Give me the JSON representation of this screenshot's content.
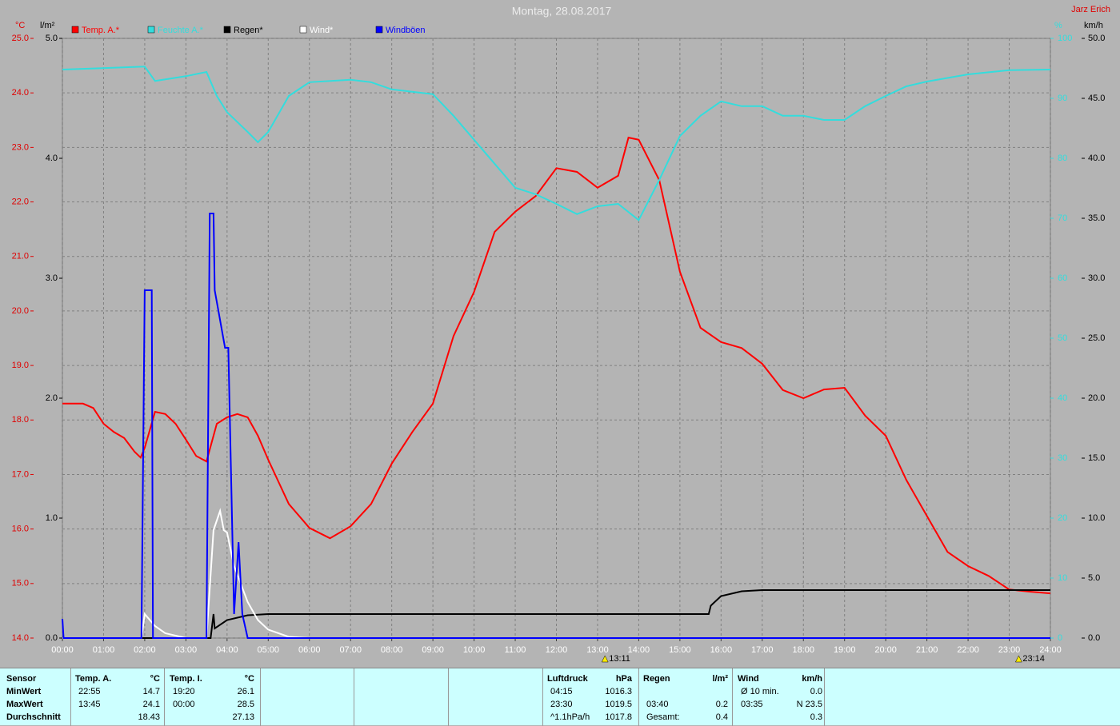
{
  "chart_data": {
    "type": "line",
    "title": "Montag, 28.08.2017",
    "subtitle": "Jarz Erich",
    "ylabel": "°C",
    "y2label": "l/m²",
    "y3label": "%",
    "y4label": "km/h",
    "xlim": [
      0,
      24
    ],
    "xticks": [
      {
        "value": 0,
        "label": "00:00"
      },
      {
        "value": 1,
        "label": "01:00"
      },
      {
        "value": 2,
        "label": "02:00"
      },
      {
        "value": 3,
        "label": "03:00"
      },
      {
        "value": 4,
        "label": "04:00"
      },
      {
        "value": 5,
        "label": "05:00"
      },
      {
        "value": 6,
        "label": "06:00"
      },
      {
        "value": 7,
        "label": "07:00"
      },
      {
        "value": 8,
        "label": "08:00"
      },
      {
        "value": 9,
        "label": "09:00"
      },
      {
        "value": 10,
        "label": "10:00"
      },
      {
        "value": 11,
        "label": "11:00"
      },
      {
        "value": 12,
        "label": "12:00"
      },
      {
        "value": 13,
        "label": "13:00"
      },
      {
        "value": 14,
        "label": "14:00"
      },
      {
        "value": 15,
        "label": "15:00"
      },
      {
        "value": 16,
        "label": "16:00"
      },
      {
        "value": 17,
        "label": "17:00"
      },
      {
        "value": 18,
        "label": "18:00"
      },
      {
        "value": 19,
        "label": "19:00"
      },
      {
        "value": 20,
        "label": "20:00"
      },
      {
        "value": 21,
        "label": "21:00"
      },
      {
        "value": 22,
        "label": "22:00"
      },
      {
        "value": 23,
        "label": "23:00"
      },
      {
        "value": 24,
        "label": "24:00"
      }
    ],
    "ylim": [
      14,
      25
    ],
    "yticks": [
      {
        "value": 14,
        "label": "14.0"
      },
      {
        "value": 15,
        "label": "15.0"
      },
      {
        "value": 16,
        "label": "16.0"
      },
      {
        "value": 17,
        "label": "17.0"
      },
      {
        "value": 18,
        "label": "18.0"
      },
      {
        "value": 19,
        "label": "19.0"
      },
      {
        "value": 20,
        "label": "20.0"
      },
      {
        "value": 21,
        "label": "21.0"
      },
      {
        "value": 22,
        "label": "22.0"
      },
      {
        "value": 23,
        "label": "23.0"
      },
      {
        "value": 24,
        "label": "24.0"
      },
      {
        "value": 25,
        "label": "25.0"
      }
    ],
    "y2lim": [
      0,
      5
    ],
    "y2ticks": [
      {
        "value": 0,
        "label": "0.0"
      },
      {
        "value": 1,
        "label": "1.0"
      },
      {
        "value": 2,
        "label": "2.0"
      },
      {
        "value": 3,
        "label": "3.0"
      },
      {
        "value": 4,
        "label": "4.0"
      },
      {
        "value": 5,
        "label": "5.0"
      }
    ],
    "y3lim": [
      0,
      100
    ],
    "y3ticks": [
      0,
      10,
      20,
      30,
      40,
      50,
      60,
      70,
      80,
      90,
      100
    ],
    "y4lim": [
      0,
      50
    ],
    "y4ticks": [
      {
        "value": 0,
        "label": "0.0"
      },
      {
        "value": 5,
        "label": "5.0"
      },
      {
        "value": 10,
        "label": "10.0"
      },
      {
        "value": 15,
        "label": "15.0"
      },
      {
        "value": 20,
        "label": "20.0"
      },
      {
        "value": 25,
        "label": "25.0"
      },
      {
        "value": 30,
        "label": "30.0"
      },
      {
        "value": 35,
        "label": "35.0"
      },
      {
        "value": 40,
        "label": "40.0"
      },
      {
        "value": 45,
        "label": "45.0"
      },
      {
        "value": 50,
        "label": "50.0"
      }
    ],
    "grid": true,
    "series": [
      {
        "name": "Temp. A.*",
        "color": "#ff0000",
        "x": [
          0,
          0.5,
          0.75,
          1,
          1.25,
          1.5,
          1.75,
          1.9,
          2,
          2.25,
          2.5,
          2.75,
          3,
          3.25,
          3.5,
          3.75,
          4,
          4.25,
          4.5,
          4.75,
          5,
          5.5,
          6,
          6.5,
          7,
          7.5,
          8,
          8.5,
          9,
          9.5,
          10,
          10.5,
          11,
          11.5,
          12,
          12.5,
          13,
          13.5,
          13.75,
          14,
          14.5,
          15,
          15.5,
          16,
          16.5,
          17,
          17.5,
          18,
          18.5,
          19,
          19.5,
          20,
          20.5,
          21,
          21.5,
          22,
          22.5,
          23,
          23.5,
          24
        ],
        "values": [
          18.3,
          18.3,
          18.22,
          17.93,
          17.78,
          17.67,
          17.42,
          17.31,
          17.49,
          18.15,
          18.11,
          17.93,
          17.64,
          17.34,
          17.24,
          17.93,
          18.05,
          18.11,
          18.05,
          17.71,
          17.27,
          16.46,
          16.02,
          15.83,
          16.05,
          16.46,
          17.2,
          17.78,
          18.3,
          19.54,
          20.35,
          21.45,
          21.82,
          22.11,
          22.62,
          22.55,
          22.26,
          22.48,
          23.18,
          23.14,
          22.4,
          20.72,
          19.69,
          19.43,
          19.32,
          19.03,
          18.55,
          18.4,
          18.56,
          18.59,
          18.08,
          17.71,
          16.9,
          16.24,
          15.58,
          15.32,
          15.14,
          14.89,
          14.85,
          14.82
        ]
      },
      {
        "name": "Feuchte A.*",
        "color": "#33dddd",
        "axis": "y3",
        "x": [
          0,
          2,
          2.25,
          3,
          3.5,
          3.75,
          4,
          4.5,
          4.75,
          5,
          5.5,
          6,
          7,
          7.5,
          8,
          9,
          9.5,
          10,
          10.5,
          11,
          11.5,
          12,
          12.5,
          13,
          13.5,
          14,
          14.5,
          15,
          15.5,
          16,
          16.5,
          17,
          17.5,
          18,
          18.5,
          19,
          19.5,
          20,
          20.5,
          21,
          22,
          23,
          24
        ],
        "values": [
          94.8,
          95.3,
          92.9,
          93.7,
          94.4,
          90.4,
          87.7,
          84.4,
          82.7,
          84.4,
          90.4,
          92.7,
          93.1,
          92.7,
          91.5,
          90.7,
          87.1,
          83.1,
          79.1,
          75.1,
          74.0,
          72.4,
          70.7,
          72.0,
          72.4,
          69.7,
          76.4,
          83.7,
          87.1,
          89.5,
          88.7,
          88.7,
          87.1,
          87.1,
          86.4,
          86.4,
          88.7,
          90.4,
          92.0,
          92.8,
          94.0,
          94.7,
          94.8
        ]
      },
      {
        "name": "Regen*",
        "color": "#000000",
        "axis": "y2",
        "x": [
          0,
          3.6,
          3.67,
          3.7,
          4,
          4.5,
          5,
          15.7,
          15.75,
          16,
          16.5,
          17,
          24
        ],
        "values": [
          0,
          0,
          0.2,
          0.08,
          0.15,
          0.19,
          0.2,
          0.2,
          0.27,
          0.35,
          0.39,
          0.4,
          0.4
        ]
      },
      {
        "name": "Wind*",
        "color": "#ffffff",
        "axis": "y4",
        "x": [
          0,
          1.92,
          2,
          2.25,
          2.5,
          3,
          3.5,
          3.67,
          3.83,
          3.92,
          4,
          4.17,
          4.5,
          4.75,
          5,
          5.5,
          6,
          24
        ],
        "values": [
          0,
          0,
          2.0,
          1.0,
          0.4,
          0,
          0,
          9.0,
          10.6,
          9.0,
          8.8,
          6.0,
          3.0,
          1.5,
          0.7,
          0.1,
          0,
          0
        ]
      },
      {
        "name": "Windböen",
        "color": "#0000ff",
        "axis": "y4",
        "x": [
          0,
          0.03,
          1.92,
          2,
          2.17,
          2.2,
          3.5,
          3.58,
          3.67,
          3.7,
          3.95,
          4.03,
          4.17,
          4.28,
          4.37,
          4.5,
          24
        ],
        "values": [
          1.6,
          0,
          0,
          29.0,
          29.0,
          0,
          0,
          35.4,
          35.4,
          29.0,
          24.2,
          24.2,
          2.0,
          8.0,
          2.0,
          0,
          0
        ]
      }
    ],
    "annotations": [
      {
        "text": "13:11",
        "x": 13.18
      },
      {
        "text": "23:14",
        "x": 23.23
      }
    ]
  },
  "stats_table": {
    "row_labels": [
      "Sensor",
      "MinWert",
      "MaxWert",
      "Durchschnitt"
    ],
    "blocks": [
      {
        "name": "Temp. A.",
        "unit": "°C",
        "min": [
          "22:55",
          "14.7"
        ],
        "max": [
          "13:45",
          "24.1"
        ],
        "avg": [
          "18.43"
        ]
      },
      {
        "name": "Temp. I.",
        "unit": "°C",
        "min": [
          "19:20",
          "26.1"
        ],
        "max": [
          "00:00",
          "28.5"
        ],
        "avg": [
          "27.13"
        ]
      },
      {
        "name": "Luftdruck",
        "unit": "hPa",
        "min": [
          "04:15",
          "1016.3"
        ],
        "max": [
          "23:30",
          "1019.5"
        ],
        "avg": [
          "^1.1hPa/h",
          "1017.8"
        ]
      },
      {
        "name": "Regen",
        "unit": "l/m²",
        "max": [
          "03:40",
          "0.2"
        ],
        "avg": [
          "Gesamt:",
          "0.4"
        ]
      },
      {
        "name": "Wind",
        "unit": "km/h",
        "min": [
          "Ø 10 min.",
          "0.0"
        ],
        "max": [
          "03:35",
          "N 23.5"
        ],
        "avg": [
          "0.3"
        ]
      }
    ]
  }
}
